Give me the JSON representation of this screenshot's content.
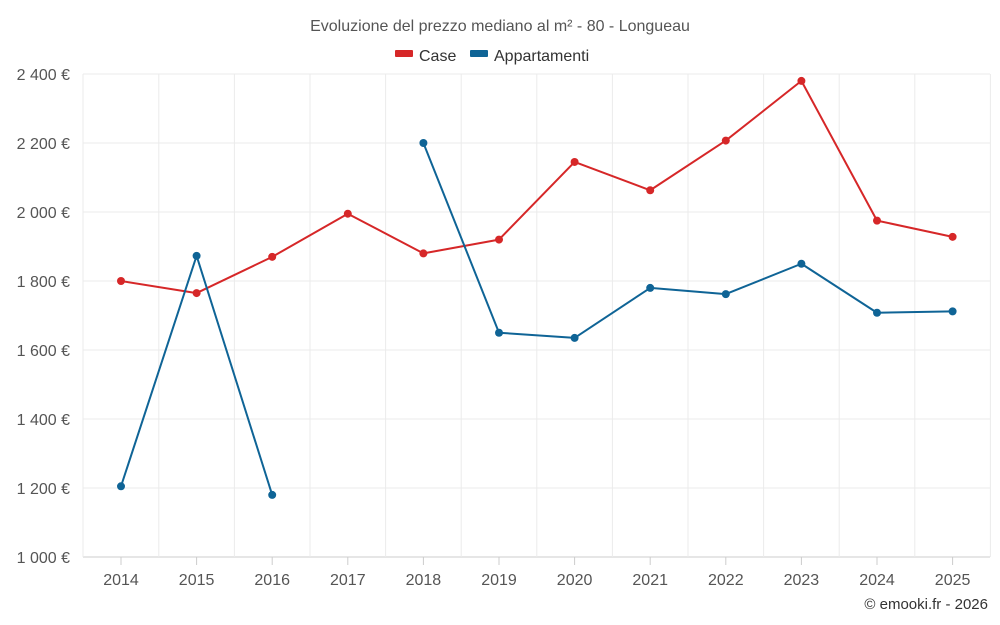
{
  "chart_data": {
    "type": "line",
    "title": "Evoluzione del prezzo mediano al m² - 80 - Longueau",
    "x": [
      "2014",
      "2015",
      "2016",
      "2017",
      "2018",
      "2019",
      "2020",
      "2021",
      "2022",
      "2023",
      "2024",
      "2025"
    ],
    "ylim": [
      1000,
      2400
    ],
    "yticks": [
      1000,
      1200,
      1400,
      1600,
      1800,
      2000,
      2200,
      2400
    ],
    "ytick_labels": [
      "1 000 €",
      "1 200 €",
      "1 400 €",
      "1 600 €",
      "1 800 €",
      "2 000 €",
      "2 200 €",
      "2 400 €"
    ],
    "grid": true,
    "legend_position": "top-center",
    "series": [
      {
        "name": "Case",
        "color": "#d62728",
        "values": [
          1800,
          1765,
          1870,
          1995,
          1880,
          1920,
          2145,
          2063,
          2207,
          2380,
          1975,
          1928
        ]
      },
      {
        "name": "Appartamenti",
        "color": "#0f6496",
        "values": [
          1205,
          1873,
          1180,
          null,
          2200,
          1650,
          1635,
          1780,
          1762,
          1850,
          1708,
          1712
        ]
      }
    ]
  },
  "credit": "© emooki.fr - 2026"
}
